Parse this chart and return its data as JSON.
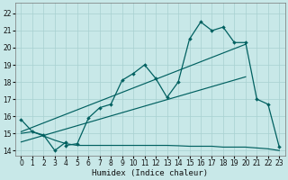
{
  "xlabel": "Humidex (Indice chaleur)",
  "bg_color": "#c8e8e8",
  "grid_color": "#a8d0d0",
  "line_color": "#006060",
  "xlim": [
    -0.5,
    23.5
  ],
  "ylim": [
    13.7,
    22.6
  ],
  "x_ticks": [
    0,
    1,
    2,
    3,
    4,
    5,
    6,
    7,
    8,
    9,
    10,
    11,
    12,
    13,
    14,
    15,
    16,
    17,
    18,
    19,
    20,
    21,
    22,
    23
  ],
  "y_ticks": [
    14,
    15,
    16,
    17,
    18,
    19,
    20,
    21,
    22
  ],
  "main_x": [
    0,
    1,
    2,
    3,
    4,
    4,
    5,
    6,
    7,
    8,
    9,
    10,
    11,
    12,
    13,
    14,
    15,
    16,
    17,
    18,
    19,
    20,
    21,
    22,
    23
  ],
  "main_y": [
    15.8,
    15.1,
    14.9,
    14.0,
    14.5,
    14.3,
    14.4,
    15.9,
    16.5,
    16.7,
    18.1,
    18.5,
    19.0,
    18.2,
    17.1,
    18.0,
    20.5,
    21.5,
    21.0,
    21.2,
    20.3,
    20.3,
    17.0,
    16.7,
    14.2
  ],
  "trend1_x": [
    0,
    20
  ],
  "trend1_y": [
    15.1,
    20.2
  ],
  "trend2_x": [
    0,
    20
  ],
  "trend2_y": [
    14.5,
    18.3
  ],
  "flat_x": [
    0,
    1,
    2,
    3,
    4,
    5,
    6,
    7,
    8,
    9,
    10,
    11,
    12,
    13,
    14,
    15,
    16,
    17,
    18,
    19,
    20,
    21,
    22,
    23
  ],
  "flat_y": [
    15.0,
    15.1,
    14.85,
    14.6,
    14.4,
    14.3,
    14.3,
    14.3,
    14.3,
    14.3,
    14.3,
    14.3,
    14.3,
    14.3,
    14.28,
    14.25,
    14.25,
    14.25,
    14.2,
    14.2,
    14.2,
    14.15,
    14.1,
    14.0
  ]
}
